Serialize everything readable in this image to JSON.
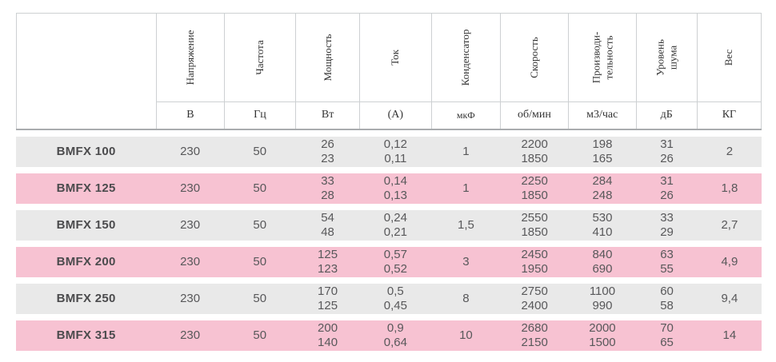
{
  "table": {
    "colors": {
      "row_gray": "#e9e9e9",
      "row_pink": "#f7c2d2",
      "border_light": "#cdd0d2",
      "border_dark": "#a9acae",
      "text": "#58585a",
      "model_text": "#4b4b4d",
      "header_text": "#333333"
    },
    "columns": [
      {
        "label": "",
        "unit": ""
      },
      {
        "label": "Напряжение",
        "unit": "В"
      },
      {
        "label": "Частота",
        "unit": "Гц"
      },
      {
        "label": "Мощность",
        "unit": "Вт"
      },
      {
        "label": "Ток",
        "unit": "(А)"
      },
      {
        "label": "Конденсатор",
        "unit": "мкФ"
      },
      {
        "label": "Скорость",
        "unit": "об/мин"
      },
      {
        "label": "Производи-\nтельность",
        "unit": "м3/час"
      },
      {
        "label": "Уровень\nшума",
        "unit": "дБ"
      },
      {
        "label": "Вес",
        "unit": "КГ"
      }
    ],
    "rows": [
      {
        "model": "BMFX 100",
        "values": [
          "230",
          "50",
          "26\n23",
          "0,12\n0,11",
          "1",
          "2200\n1850",
          "198\n165",
          "31\n26",
          "2"
        ]
      },
      {
        "model": "BMFX 125",
        "values": [
          "230",
          "50",
          "33\n28",
          "0,14\n0,13",
          "1",
          "2250\n1850",
          "284\n248",
          "31\n26",
          "1,8"
        ]
      },
      {
        "model": "BMFX 150",
        "values": [
          "230",
          "50",
          "54\n48",
          "0,24\n0,21",
          "1,5",
          "2550\n1850",
          "530\n410",
          "33\n29",
          "2,7"
        ]
      },
      {
        "model": "BMFX 200",
        "values": [
          "230",
          "50",
          "125\n123",
          "0,57\n0,52",
          "3",
          "2450\n1950",
          "840\n690",
          "63\n55",
          "4,9"
        ]
      },
      {
        "model": "BMFX 250",
        "values": [
          "230",
          "50",
          "170\n125",
          "0,5\n0,45",
          "8",
          "2750\n2400",
          "1100\n990",
          "60\n58",
          "9,4"
        ]
      },
      {
        "model": "BMFX 315",
        "values": [
          "230",
          "50",
          "200\n140",
          "0,9\n0,64",
          "10",
          "2680\n2150",
          "2000\n1500",
          "70\n65",
          "14"
        ]
      }
    ]
  }
}
